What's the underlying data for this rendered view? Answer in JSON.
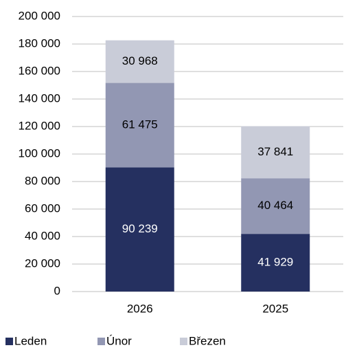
{
  "chart_data": {
    "type": "stacked_bar",
    "categories": [
      "2026",
      "2025"
    ],
    "series": [
      {
        "name": "Leden",
        "color": "#253060",
        "values": [
          90239,
          41929
        ],
        "value_labels": [
          "90 239",
          "41 929"
        ]
      },
      {
        "name": "Únor",
        "color": "#9297b3",
        "values": [
          61475,
          40464
        ],
        "value_labels": [
          "61 475",
          "40 464"
        ]
      },
      {
        "name": "Březen",
        "color": "#c9ccd8",
        "values": [
          30968,
          37841
        ],
        "value_labels": [
          "30 968",
          "37 841"
        ]
      }
    ],
    "ylim": [
      0,
      200000
    ],
    "yticks": [
      0,
      {
        "value": 20000,
        "label": "20 000"
      },
      {
        "value": 40000,
        "label": "40 000"
      },
      {
        "value": 60000,
        "label": "60 000"
      },
      {
        "value": 80000,
        "label": "80 000"
      },
      {
        "value": 100000,
        "label": "100 000"
      },
      {
        "value": 120000,
        "label": "120 000"
      },
      {
        "value": 140000,
        "label": "140 000"
      },
      {
        "value": 160000,
        "label": "160 000"
      },
      {
        "value": 180000,
        "label": "180 000"
      },
      {
        "value": 200000,
        "label": "200 000"
      }
    ],
    "grid": true,
    "legend": "bottom"
  }
}
